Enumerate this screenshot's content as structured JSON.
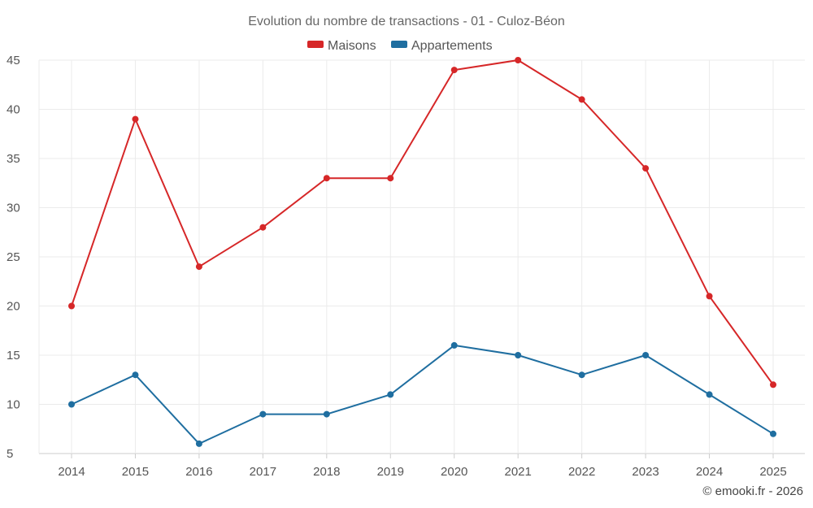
{
  "chart_data": {
    "type": "line",
    "title": "Evolution du nombre de transactions - 01 - Culoz-Béon",
    "categories": [
      "2014",
      "2015",
      "2016",
      "2017",
      "2018",
      "2019",
      "2020",
      "2021",
      "2022",
      "2023",
      "2024",
      "2025"
    ],
    "series": [
      {
        "name": "Maisons",
        "color": "#d62728",
        "values": [
          20,
          39,
          24,
          28,
          33,
          33,
          44,
          45,
          41,
          34,
          21,
          12
        ]
      },
      {
        "name": "Appartements",
        "color": "#1f6ea0",
        "values": [
          10,
          13,
          6,
          9,
          9,
          11,
          16,
          15,
          13,
          15,
          11,
          7
        ]
      }
    ],
    "ylim": [
      5,
      45
    ],
    "yticks": [
      5,
      10,
      15,
      20,
      25,
      30,
      35,
      40,
      45
    ],
    "grid": true,
    "legend_position": "top-center",
    "xlabel": "",
    "ylabel": ""
  },
  "credit": "© emooki.fr - 2026"
}
